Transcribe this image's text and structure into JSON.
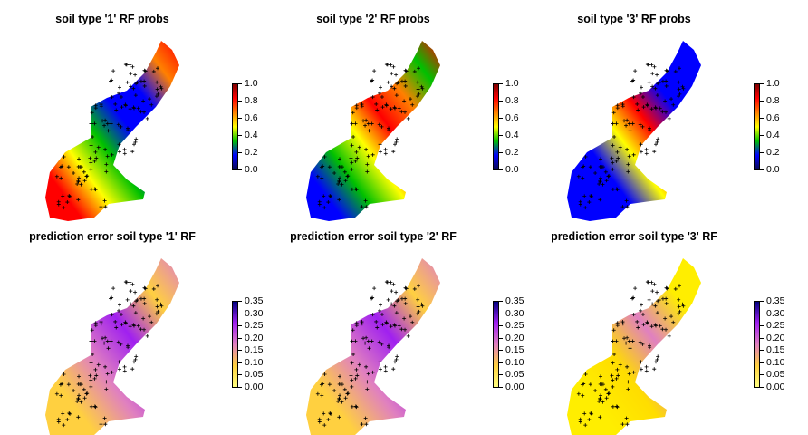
{
  "chart_data": [
    {
      "type": "heatmap",
      "title": "soil type '1' RF probs",
      "palette": "rainbow",
      "legend": {
        "ticks": [
          "1.0",
          "0.8",
          "0.6",
          "0.4",
          "0.2",
          "0.0"
        ]
      },
      "pattern": "high in southwest lobe and along northwest edge, low in central-east band"
    },
    {
      "type": "heatmap",
      "title": "soil type '2' RF probs",
      "palette": "rainbow",
      "legend": {
        "ticks": [
          "1.0",
          "0.8",
          "0.6",
          "0.4",
          "0.2",
          "0.0"
        ]
      },
      "pattern": "high in central and northern strip, low in southwest lobe"
    },
    {
      "type": "heatmap",
      "title": "soil type '3' RF probs",
      "palette": "rainbow",
      "legend": {
        "ticks": [
          "1.0",
          "0.8",
          "0.6",
          "0.4",
          "0.2",
          "0.0"
        ]
      },
      "pattern": "mostly low, high pocket near the central junction"
    },
    {
      "type": "heatmap",
      "title": "prediction error soil type '1' RF",
      "palette": "error",
      "legend": {
        "ticks": [
          "0.35",
          "0.30",
          "0.25",
          "0.20",
          "0.15",
          "0.10",
          "0.05",
          "0.00"
        ]
      },
      "pattern": "mostly low, higher error near the central junction and the small southeast spur"
    },
    {
      "type": "heatmap",
      "title": "prediction error soil type '2' RF",
      "palette": "error",
      "legend": {
        "ticks": [
          "0.35",
          "0.30",
          "0.25",
          "0.20",
          "0.15",
          "0.10",
          "0.05",
          "0.00"
        ]
      },
      "pattern": "mostly low, higher error along the central band and southeast spur"
    },
    {
      "type": "heatmap",
      "title": "prediction error soil type '3' RF",
      "palette": "error",
      "legend": {
        "ticks": [
          "0.35",
          "0.30",
          "0.25",
          "0.20",
          "0.15",
          "0.10",
          "0.05",
          "0.00"
        ]
      },
      "pattern": "mostly very low, higher error around the central junction pocket"
    }
  ],
  "colors": {
    "rainbow": [
      "#0a0a50",
      "#0000ff",
      "#00c000",
      "#ffff00",
      "#ff8000",
      "#ff0000",
      "#800000"
    ],
    "error": [
      "#ffff80",
      "#ffd040",
      "#e080c0",
      "#a020f0",
      "#000080"
    ],
    "points": "#000000"
  }
}
